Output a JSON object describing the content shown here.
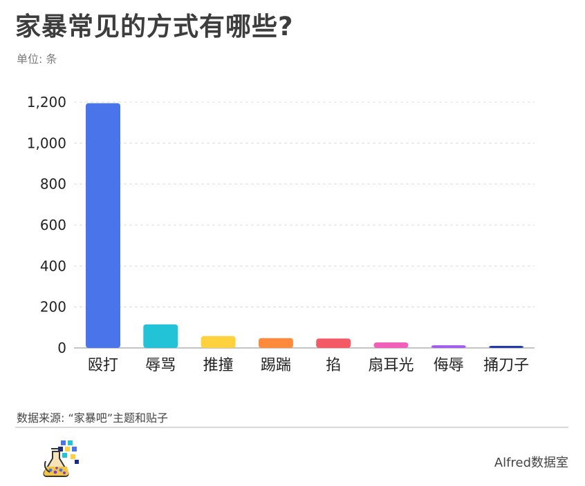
{
  "header": {
    "title": "家暴常见的方式有哪些?",
    "unit": "单位: 条"
  },
  "footer": {
    "source": "数据来源: “家暴吧”主题和贴子",
    "brand": "Alfred数据室",
    "logo_icon": "flask-icon"
  },
  "chart_data": {
    "type": "bar",
    "title": "家暴常见的方式有哪些?",
    "subtitle": "单位: 条",
    "categories": [
      "殴打",
      "辱骂",
      "推撞",
      "踢踹",
      "掐",
      "扇耳光",
      "侮辱",
      "捅刀子"
    ],
    "values": [
      1195,
      115,
      58,
      48,
      46,
      27,
      13,
      10
    ],
    "colors": [
      "#4a74ea",
      "#22c3d6",
      "#fed23f",
      "#ff8a3c",
      "#f35a65",
      "#f25fb8",
      "#a25cf0",
      "#2138b0"
    ],
    "ylim": [
      0,
      1200
    ],
    "yticks": [
      "0",
      "200",
      "400",
      "600",
      "800",
      "1,000",
      "1,200"
    ],
    "ytick_values": [
      0,
      200,
      400,
      600,
      800,
      1000,
      1200
    ],
    "grid": true,
    "legend": "none",
    "xlabel": "",
    "ylabel": ""
  }
}
